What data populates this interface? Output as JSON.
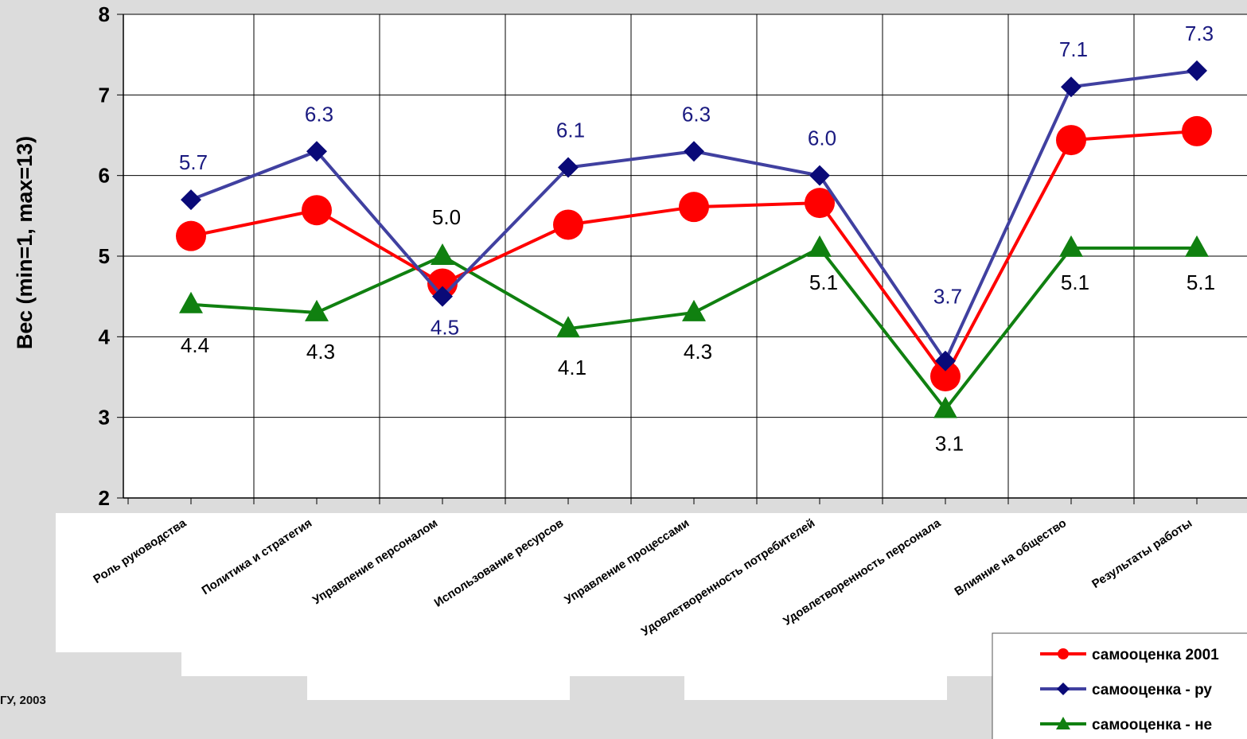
{
  "chart_data": {
    "type": "line",
    "title": "",
    "ylabel": "Вес (min=1, max=13)",
    "xlabel": "",
    "ylim": [
      2,
      8
    ],
    "yticks": [
      2,
      3,
      4,
      5,
      6,
      7,
      8
    ],
    "grid": true,
    "legend_position": "bottom-right",
    "categories": [
      "Роль руководства",
      "Политика и стратегия",
      "Управление персоналом",
      "Использование ресурсов",
      "Управление процессами",
      "Удовлетворенность потребителей",
      "Удовлетворенность персонала",
      "Влияние на общество",
      "Результаты работы"
    ],
    "series": [
      {
        "name": "самооценка 2001",
        "color": "#ff0000",
        "marker": "circle",
        "values": [
          5.25,
          5.57,
          4.66,
          5.39,
          5.61,
          5.66,
          3.51,
          6.44,
          6.55
        ],
        "labels_shown": false
      },
      {
        "name": "самооценка - ру",
        "color": "#0a0a78",
        "line_color": "#4040a0",
        "marker": "diamond",
        "values": [
          5.7,
          6.3,
          4.5,
          6.1,
          6.3,
          6.0,
          3.7,
          7.1,
          7.3
        ],
        "labels": [
          "5.7",
          "6.3",
          "4.5",
          "6.1",
          "6.3",
          "6.0",
          "3.7",
          "7.1",
          "7.3"
        ],
        "label_color": "#1a1a80"
      },
      {
        "name": "самооценка - не",
        "color": "#108010",
        "marker": "triangle",
        "values": [
          4.4,
          4.3,
          5.0,
          4.1,
          4.3,
          5.1,
          3.1,
          5.1,
          5.1
        ],
        "labels": [
          "4.4",
          "4.3",
          "5.0",
          "4.1",
          "4.3",
          "5.1",
          "3.1",
          "5.1",
          "5.1"
        ],
        "label_color": "#000000"
      }
    ]
  },
  "footer": {
    "credit": "ГУ, 2003"
  },
  "colors": {
    "background": "#dcdcdc",
    "plot_background": "#ffffff",
    "grid": "#000000"
  }
}
